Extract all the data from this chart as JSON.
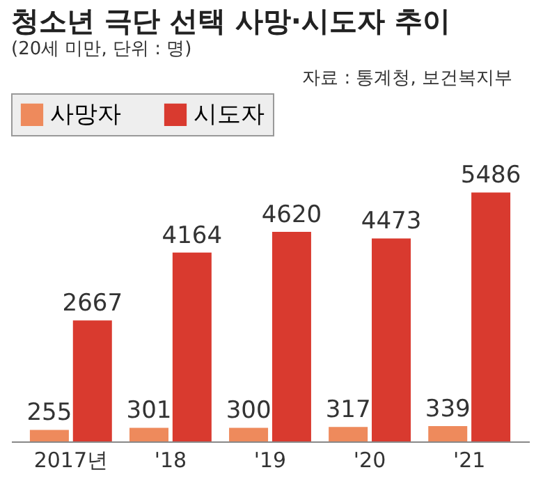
{
  "chart_data": {
    "type": "bar",
    "title": "청소년 극단 선택 사망·시도자 추이",
    "subtitle": "(20세 미만, 단위 : 명)",
    "annotations": [
      "자료 : 통계청, 보건복지부"
    ],
    "categories": [
      "2017년",
      "'18",
      "'19",
      "'20",
      "'21"
    ],
    "series": [
      {
        "name": "사망자",
        "color": "#ee8a5c",
        "values": [
          255,
          301,
          300,
          317,
          339
        ]
      },
      {
        "name": "시도자",
        "color": "#d93a2f",
        "values": [
          2667,
          4164,
          4620,
          4473,
          5486
        ]
      }
    ],
    "data_labels": true,
    "legend": "top",
    "grid": false
  }
}
